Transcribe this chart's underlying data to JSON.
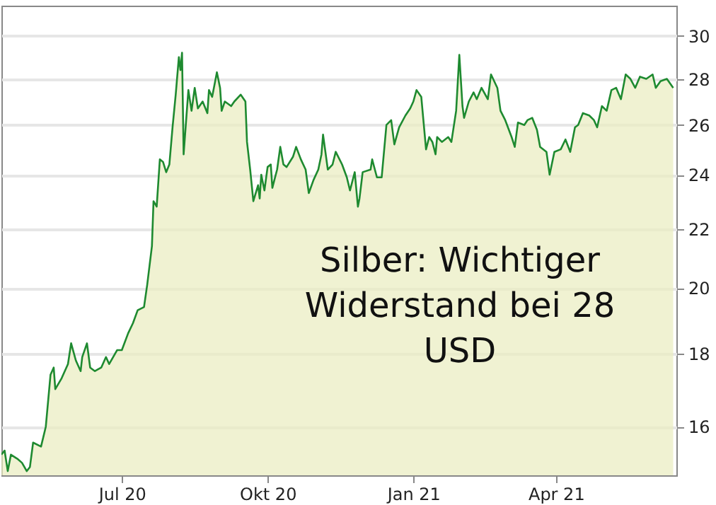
{
  "chart_data": {
    "type": "area",
    "x": [
      "2020-04-16",
      "2020-04-18",
      "2020-04-20",
      "2020-04-22",
      "2020-04-26",
      "2020-04-29",
      "2020-05-02",
      "2020-05-04",
      "2020-05-06",
      "2020-05-11",
      "2020-05-14",
      "2020-05-17",
      "2020-05-19",
      "2020-05-20",
      "2020-05-24",
      "2020-05-28",
      "2020-05-30",
      "2020-06-02",
      "2020-06-05",
      "2020-06-06",
      "2020-06-09",
      "2020-06-11",
      "2020-06-14",
      "2020-06-18",
      "2020-06-21",
      "2020-06-23",
      "2020-06-28",
      "2020-07-01",
      "2020-07-05",
      "2020-07-08",
      "2020-07-11",
      "2020-07-15",
      "2020-07-17",
      "2020-07-20",
      "2020-07-21",
      "2020-07-23",
      "2020-07-25",
      "2020-07-27",
      "2020-07-29",
      "2020-07-31",
      "2020-08-02",
      "2020-08-04",
      "2020-08-06",
      "2020-08-07",
      "2020-08-08",
      "2020-08-09",
      "2020-08-12",
      "2020-08-14",
      "2020-08-16",
      "2020-08-18",
      "2020-08-21",
      "2020-08-24",
      "2020-08-25",
      "2020-08-27",
      "2020-08-30",
      "2020-09-01",
      "2020-09-02",
      "2020-09-04",
      "2020-09-08",
      "2020-09-10",
      "2020-09-14",
      "2020-09-17",
      "2020-09-18",
      "2020-09-20",
      "2020-09-22",
      "2020-09-25",
      "2020-09-26",
      "2020-09-27",
      "2020-09-29",
      "2020-10-01",
      "2020-10-03",
      "2020-10-04",
      "2020-10-07",
      "2020-10-09",
      "2020-10-11",
      "2020-10-13",
      "2020-10-17",
      "2020-10-19",
      "2020-10-22",
      "2020-10-25",
      "2020-10-27",
      "2020-10-30",
      "2020-11-02",
      "2020-11-04",
      "2020-11-05",
      "2020-11-08",
      "2020-11-11",
      "2020-11-13",
      "2020-11-17",
      "2020-11-20",
      "2020-11-22",
      "2020-11-25",
      "2020-11-27",
      "2020-11-28",
      "2020-11-30",
      "2020-12-05",
      "2020-12-06",
      "2020-12-09",
      "2020-12-12",
      "2020-12-15",
      "2020-12-18",
      "2020-12-20",
      "2020-12-23",
      "2020-12-27",
      "2020-12-30",
      "2021-01-01",
      "2021-01-03",
      "2021-01-06",
      "2021-01-09",
      "2021-01-11",
      "2021-01-13",
      "2021-01-15",
      "2021-01-16",
      "2021-01-19",
      "2021-01-23",
      "2021-01-25",
      "2021-01-28",
      "2021-01-30",
      "2021-02-01",
      "2021-02-02",
      "2021-02-05",
      "2021-02-08",
      "2021-02-10",
      "2021-02-13",
      "2021-02-17",
      "2021-02-19",
      "2021-02-23",
      "2021-02-25",
      "2021-02-28",
      "2021-03-04",
      "2021-03-06",
      "2021-03-08",
      "2021-03-12",
      "2021-03-14",
      "2021-03-17",
      "2021-03-20",
      "2021-03-22",
      "2021-03-26",
      "2021-03-28",
      "2021-03-31",
      "2021-04-04",
      "2021-04-07",
      "2021-04-10",
      "2021-04-13",
      "2021-04-15",
      "2021-04-18",
      "2021-04-22",
      "2021-04-25",
      "2021-04-27",
      "2021-04-30",
      "2021-05-03",
      "2021-05-06",
      "2021-05-09",
      "2021-05-12",
      "2021-05-15",
      "2021-05-18",
      "2021-05-21",
      "2021-05-24",
      "2021-05-28",
      "2021-06-01",
      "2021-06-03",
      "2021-06-06",
      "2021-06-10",
      "2021-06-14"
    ],
    "series": [
      {
        "color": "#1e8a30",
        "values": [
          15.3,
          15.4,
          14.9,
          15.3,
          15.2,
          15.1,
          14.9,
          15.0,
          15.6,
          15.5,
          16.0,
          17.4,
          17.6,
          17.0,
          17.3,
          17.7,
          18.3,
          17.8,
          17.5,
          17.9,
          18.3,
          17.6,
          17.5,
          17.6,
          17.9,
          17.7,
          18.1,
          18.1,
          18.6,
          18.9,
          19.3,
          19.4,
          20.1,
          21.4,
          23.0,
          22.8,
          24.6,
          24.5,
          24.1,
          24.4,
          25.9,
          27.3,
          29.0,
          28.4,
          29.2,
          24.8,
          27.5,
          26.6,
          27.6,
          26.7,
          27.0,
          26.5,
          27.5,
          27.2,
          28.3,
          27.6,
          26.6,
          27.0,
          26.8,
          27.0,
          27.3,
          27.0,
          25.3,
          24.2,
          23.0,
          23.6,
          23.1,
          24.0,
          23.4,
          24.3,
          24.4,
          23.5,
          24.2,
          25.1,
          24.4,
          24.3,
          24.7,
          25.1,
          24.6,
          24.2,
          23.3,
          23.8,
          24.2,
          24.8,
          25.6,
          24.2,
          24.4,
          24.9,
          24.4,
          23.9,
          23.4,
          24.1,
          22.8,
          23.1,
          24.1,
          24.2,
          24.6,
          23.9,
          23.9,
          26.0,
          26.2,
          25.2,
          25.9,
          26.4,
          26.7,
          27.0,
          27.5,
          27.2,
          25.0,
          25.5,
          25.3,
          24.8,
          25.5,
          25.3,
          25.5,
          25.3,
          26.6,
          29.1,
          26.8,
          26.3,
          27.0,
          27.4,
          27.1,
          27.6,
          27.1,
          28.2,
          27.6,
          26.6,
          26.2,
          25.5,
          25.1,
          26.1,
          26.0,
          26.2,
          26.3,
          25.8,
          25.1,
          24.9,
          24.0,
          24.9,
          25.0,
          25.4,
          24.9,
          25.9,
          26.0,
          26.5,
          26.4,
          26.2,
          25.9,
          26.8,
          26.6,
          27.5,
          27.6,
          27.1,
          28.2,
          28.0,
          27.6,
          28.1,
          28.0,
          28.2,
          27.6,
          27.9,
          28.0,
          27.6
        ]
      }
    ],
    "xlim": [
      "2020-04-16",
      "2021-06-16"
    ],
    "xticks": [
      {
        "value": "2020-07-01",
        "label": "Jul 20"
      },
      {
        "value": "2020-10-01",
        "label": "Okt 20"
      },
      {
        "value": "2021-01-01",
        "label": "Jan 21"
      },
      {
        "value": "2021-04-01",
        "label": "Apr 21"
      }
    ],
    "ylim": [
      14.8,
      31.5
    ],
    "yticks": [
      16,
      18,
      20,
      22,
      24,
      26,
      28,
      30
    ],
    "log": true,
    "grid": "y",
    "annotations": [
      "Silber: Wichtiger Widerstand bei 28 USD"
    ]
  }
}
